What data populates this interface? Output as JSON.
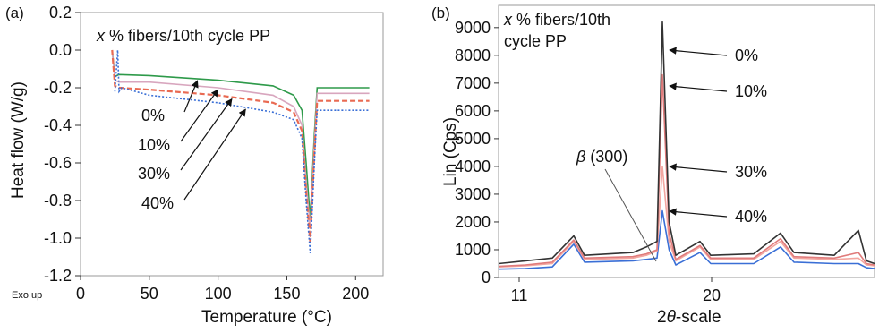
{
  "chart_data": [
    {
      "panel_label": "(a)",
      "type": "line",
      "annotation": "x % fibers/10th cycle PP",
      "xlabel": "Temperature (°C)",
      "ylabel": "Heat flow (W/g)",
      "exo_label": "Exo up",
      "xlim": [
        0,
        220
      ],
      "ylim": [
        -1.2,
        0.2
      ],
      "x_ticks": [
        "0",
        "50",
        "100",
        "150",
        "200"
      ],
      "y_ticks": [
        "0.2",
        "0.0",
        "-0.2",
        "-0.4",
        "-0.6",
        "-0.8",
        "-1.0",
        "-1.2"
      ],
      "grid": false,
      "series": [
        {
          "label": "0%",
          "color": "#2e9a4a",
          "points": [
            [
              23,
              0.0
            ],
            [
              25,
              -0.14
            ],
            [
              28,
              -0.13
            ],
            [
              50,
              -0.135
            ],
            [
              100,
              -0.16
            ],
            [
              140,
              -0.19
            ],
            [
              155,
              -0.24
            ],
            [
              161,
              -0.32
            ],
            [
              164,
              -0.6
            ],
            [
              167,
              -0.9
            ],
            [
              170,
              -0.45
            ],
            [
              172,
              -0.2
            ],
            [
              210,
              -0.2
            ]
          ]
        },
        {
          "label": "10%",
          "color": "#d8a6be",
          "points": [
            [
              23,
              0.0
            ],
            [
              25,
              -0.16
            ],
            [
              28,
              -0.17
            ],
            [
              50,
              -0.17
            ],
            [
              100,
              -0.2
            ],
            [
              140,
              -0.24
            ],
            [
              155,
              -0.3
            ],
            [
              161,
              -0.4
            ],
            [
              164,
              -0.7
            ],
            [
              167,
              -0.95
            ],
            [
              170,
              -0.5
            ],
            [
              172,
              -0.23
            ],
            [
              210,
              -0.23
            ]
          ]
        },
        {
          "label": "30%",
          "color": "#e96a52",
          "points": [
            [
              23,
              0.0
            ],
            [
              25,
              -0.19
            ],
            [
              28,
              -0.2
            ],
            [
              50,
              -0.21
            ],
            [
              100,
              -0.24
            ],
            [
              140,
              -0.28
            ],
            [
              155,
              -0.33
            ],
            [
              161,
              -0.43
            ],
            [
              164,
              -0.75
            ],
            [
              167,
              -1.02
            ],
            [
              170,
              -0.55
            ],
            [
              172,
              -0.27
            ],
            [
              210,
              -0.27
            ]
          ]
        },
        {
          "label": "40%",
          "color": "#3a6fd6",
          "points": [
            [
              25,
              -0.22
            ],
            [
              27,
              0.0
            ],
            [
              28,
              -0.22
            ],
            [
              30,
              -0.2
            ],
            [
              50,
              -0.24
            ],
            [
              100,
              -0.28
            ],
            [
              140,
              -0.33
            ],
            [
              155,
              -0.37
            ],
            [
              161,
              -0.47
            ],
            [
              164,
              -0.8
            ],
            [
              167,
              -1.08
            ],
            [
              170,
              -0.6
            ],
            [
              172,
              -0.32
            ],
            [
              210,
              -0.32
            ]
          ]
        }
      ]
    },
    {
      "panel_label": "(b)",
      "type": "line",
      "annotation_line1": "x % fibers/10th",
      "annotation_line2": "cycle PP",
      "xlabel": "2θ-scale",
      "ylabel": "Lin (Cps)",
      "x_ticks": [
        "11",
        "20"
      ],
      "y_ticks": [
        "0",
        "1000",
        "2000",
        "3000",
        "4000",
        "5000",
        "6000",
        "7000",
        "8000",
        "9000"
      ],
      "ylim": [
        0,
        9800
      ],
      "grid": false,
      "peak_label": "β (300)",
      "series": [
        {
          "label": "0%",
          "color": "#333333",
          "points": [
            [
              10,
              500
            ],
            [
              11,
              600
            ],
            [
              12,
              700
            ],
            [
              12.8,
              1500
            ],
            [
              13.2,
              800
            ],
            [
              15,
              900
            ],
            [
              15.5,
              1100
            ],
            [
              15.9,
              1300
            ],
            [
              16.1,
              9200
            ],
            [
              16.35,
              2000
            ],
            [
              16.6,
              800
            ],
            [
              17.5,
              1300
            ],
            [
              17.9,
              800
            ],
            [
              19.5,
              850
            ],
            [
              20.5,
              1600
            ],
            [
              21,
              900
            ],
            [
              22.5,
              800
            ],
            [
              23.4,
              1700
            ],
            [
              23.7,
              600
            ],
            [
              24,
              500
            ]
          ]
        },
        {
          "label": "10%",
          "color": "#e07b7b",
          "points": [
            [
              10,
              400
            ],
            [
              11,
              450
            ],
            [
              12,
              550
            ],
            [
              12.8,
              1350
            ],
            [
              13.2,
              700
            ],
            [
              15,
              750
            ],
            [
              15.5,
              850
            ],
            [
              15.9,
              1000
            ],
            [
              16.1,
              7300
            ],
            [
              16.35,
              1600
            ],
            [
              16.6,
              650
            ],
            [
              17.5,
              1150
            ],
            [
              17.9,
              700
            ],
            [
              19.5,
              700
            ],
            [
              20.5,
              1400
            ],
            [
              21,
              750
            ],
            [
              22.5,
              700
            ],
            [
              23.4,
              900
            ],
            [
              23.7,
              500
            ],
            [
              24,
              450
            ]
          ]
        },
        {
          "label": "30%",
          "color": "#f3a6a0",
          "points": [
            [
              10,
              380
            ],
            [
              11,
              420
            ],
            [
              12,
              500
            ],
            [
              12.8,
              1300
            ],
            [
              13.2,
              650
            ],
            [
              15,
              700
            ],
            [
              15.5,
              800
            ],
            [
              15.9,
              950
            ],
            [
              16.1,
              4000
            ],
            [
              16.35,
              1300
            ],
            [
              16.6,
              600
            ],
            [
              17.5,
              1100
            ],
            [
              17.9,
              650
            ],
            [
              19.5,
              650
            ],
            [
              20.5,
              1300
            ],
            [
              21,
              700
            ],
            [
              22.5,
              650
            ],
            [
              23.4,
              700
            ],
            [
              23.7,
              450
            ],
            [
              24,
              420
            ]
          ]
        },
        {
          "label": "40%",
          "color": "#3a6fd6",
          "points": [
            [
              10,
              300
            ],
            [
              11,
              320
            ],
            [
              12,
              380
            ],
            [
              12.8,
              1200
            ],
            [
              13.2,
              550
            ],
            [
              15,
              600
            ],
            [
              15.5,
              650
            ],
            [
              15.9,
              700
            ],
            [
              16.1,
              2400
            ],
            [
              16.35,
              1000
            ],
            [
              16.6,
              450
            ],
            [
              17.5,
              900
            ],
            [
              17.9,
              500
            ],
            [
              19.5,
              500
            ],
            [
              20.5,
              1100
            ],
            [
              21,
              550
            ],
            [
              22.5,
              500
            ],
            [
              23.4,
              500
            ],
            [
              23.7,
              350
            ],
            [
              24,
              320
            ]
          ]
        }
      ]
    }
  ]
}
